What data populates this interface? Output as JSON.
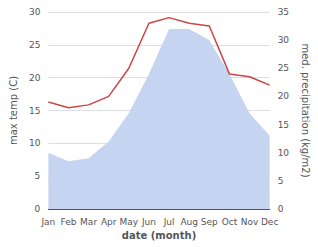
{
  "chart_data": {
    "type": "line",
    "categories": [
      "Jan",
      "Feb",
      "Mar",
      "Apr",
      "May",
      "Jun",
      "Jul",
      "Aug",
      "Sep",
      "Oct",
      "Nov",
      "Dec"
    ],
    "xlabel": "date (month)",
    "ylabel": "max temp (C)",
    "y2label": "med. precipitation (kg/m2)",
    "ylim": [
      0,
      30
    ],
    "yticks": [
      0,
      5,
      10,
      15,
      20,
      25,
      30
    ],
    "y2lim": [
      0,
      35
    ],
    "y2ticks": [
      0,
      5,
      10,
      15,
      20,
      25,
      30,
      35
    ],
    "grid": true,
    "series": [
      {
        "type": "area",
        "color": "#c5d4f0",
        "axis": "y2",
        "values": [
          10,
          8.5,
          9,
          12,
          17,
          24,
          32,
          32,
          30,
          24,
          17,
          13
        ]
      },
      {
        "type": "line",
        "color": "#cc4444",
        "axis": "y2",
        "values": [
          19,
          18,
          18.5,
          20,
          25,
          33,
          34,
          33,
          32.5,
          24,
          23.5,
          22
        ]
      }
    ]
  }
}
